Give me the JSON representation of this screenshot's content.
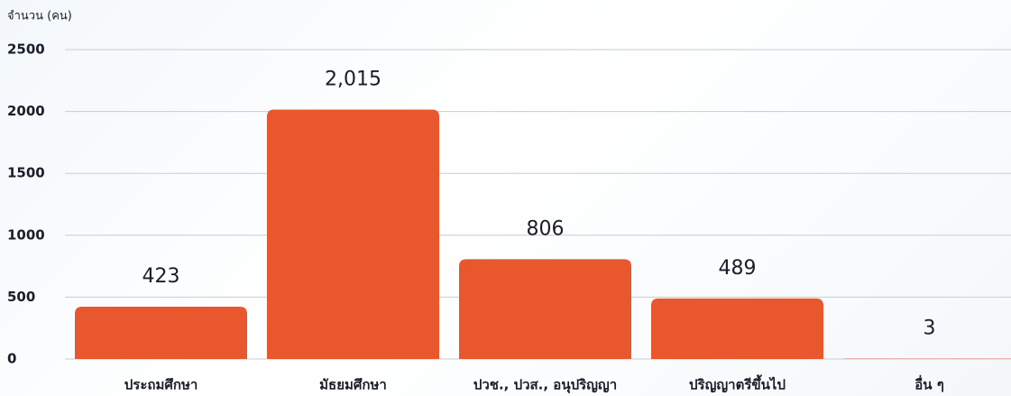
{
  "chart_data": {
    "type": "bar",
    "y_axis_label": "จำนวน (คน)",
    "categories": [
      "ประถมศึกษา",
      "มัธยมศึกษา",
      "ปวช., ปวส., อนุปริญญา",
      "ปริญญาตรีขึ้นไป",
      "อื่น ๆ"
    ],
    "values": [
      423,
      2015,
      806,
      489,
      3
    ],
    "value_labels": [
      "423",
      "2,015",
      "806",
      "489",
      "3"
    ],
    "color": "#e8572e",
    "ylim": [
      0,
      2500
    ],
    "yticks": [
      0,
      500,
      1000,
      1500,
      2000,
      2500
    ],
    "grid": true
  }
}
